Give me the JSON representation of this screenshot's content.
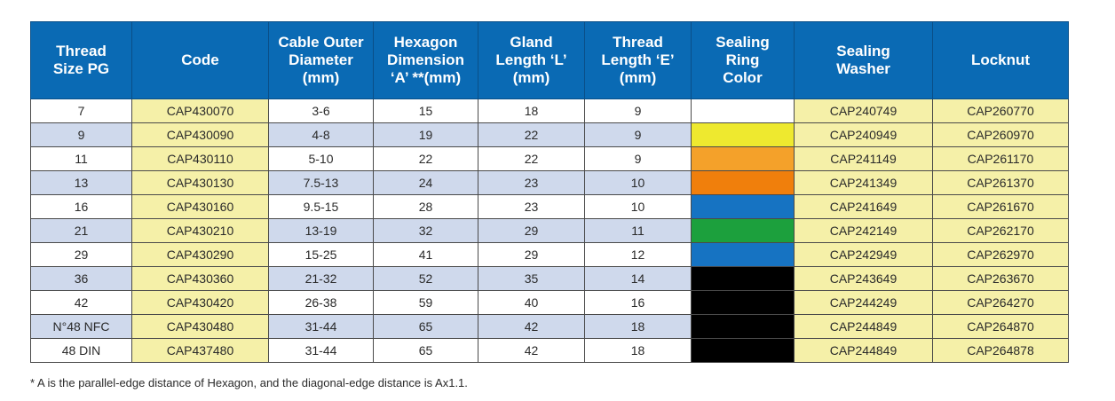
{
  "table": {
    "headers": [
      "Thread\nSize PG",
      "Code",
      "Cable Outer\nDiameter\n(mm)",
      "Hexagon\nDimension\n‘A’ **(mm)",
      "Gland\nLength ‘L’\n(mm)",
      "Thread\nLength ‘E’\n(mm)",
      "Sealing\nRing\nColor",
      "Sealing\nWasher",
      "Locknut"
    ],
    "rows": [
      {
        "thread": "7",
        "code": "CAP430070",
        "cable": "3-6",
        "hex": "15",
        "gland": "18",
        "thread_len": "9",
        "ring_color": "#ffffff",
        "washer": "CAP240749",
        "locknut": "CAP260770"
      },
      {
        "thread": "9",
        "code": "CAP430090",
        "cable": "4-8",
        "hex": "19",
        "gland": "22",
        "thread_len": "9",
        "ring_color": "#eee92f",
        "washer": "CAP240949",
        "locknut": "CAP260970"
      },
      {
        "thread": "11",
        "code": "CAP430110",
        "cable": "5-10",
        "hex": "22",
        "gland": "22",
        "thread_len": "9",
        "ring_color": "#f4a12a",
        "washer": "CAP241149",
        "locknut": "CAP261170"
      },
      {
        "thread": "13",
        "code": "CAP430130",
        "cable": "7.5-13",
        "hex": "24",
        "gland": "23",
        "thread_len": "10",
        "ring_color": "#f07f0c",
        "washer": "CAP241349",
        "locknut": "CAP261370"
      },
      {
        "thread": "16",
        "code": "CAP430160",
        "cable": "9.5-15",
        "hex": "28",
        "gland": "23",
        "thread_len": "10",
        "ring_color": "#1673c2",
        "washer": "CAP241649",
        "locknut": "CAP261670"
      },
      {
        "thread": "21",
        "code": "CAP430210",
        "cable": "13-19",
        "hex": "32",
        "gland": "29",
        "thread_len": "11",
        "ring_color": "#1ca03d",
        "washer": "CAP242149",
        "locknut": "CAP262170"
      },
      {
        "thread": "29",
        "code": "CAP430290",
        "cable": "15-25",
        "hex": "41",
        "gland": "29",
        "thread_len": "12",
        "ring_color": "#1673c2",
        "washer": "CAP242949",
        "locknut": "CAP262970"
      },
      {
        "thread": "36",
        "code": "CAP430360",
        "cable": "21-32",
        "hex": "52",
        "gland": "35",
        "thread_len": "14",
        "ring_color": "#000000",
        "washer": "CAP243649",
        "locknut": "CAP263670"
      },
      {
        "thread": "42",
        "code": "CAP430420",
        "cable": "26-38",
        "hex": "59",
        "gland": "40",
        "thread_len": "16",
        "ring_color": "#000000",
        "washer": "CAP244249",
        "locknut": "CAP264270"
      },
      {
        "thread": "N°48 NFC",
        "code": "CAP430480",
        "cable": "31-44",
        "hex": "65",
        "gland": "42",
        "thread_len": "18",
        "ring_color": "#000000",
        "washer": "CAP244849",
        "locknut": "CAP264870"
      },
      {
        "thread": "48 DIN",
        "code": "CAP437480",
        "cable": "31-44",
        "hex": "65",
        "gland": "42",
        "thread_len": "18",
        "ring_color": "#000000",
        "washer": "CAP244849",
        "locknut": "CAP264878"
      }
    ]
  },
  "footnote": "* A is the parallel-edge distance of Hexagon, and the diagonal-edge distance is Ax1.1.",
  "colors": {
    "header_bg": "#0a6ab4",
    "code_bg": "#f5f0a8",
    "stripe_bg": "#cfd9ec"
  }
}
